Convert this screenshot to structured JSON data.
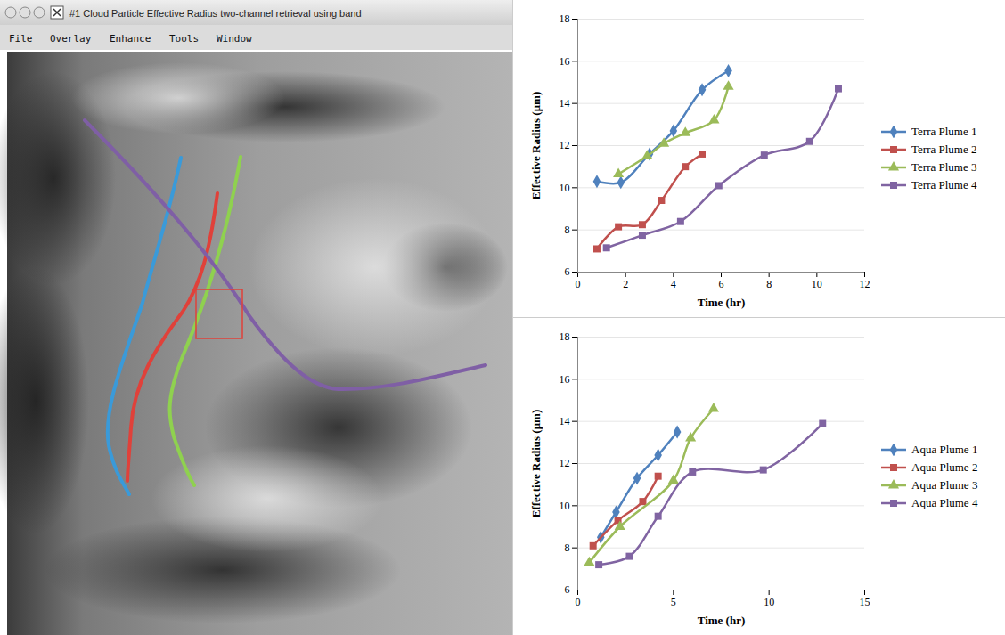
{
  "screenshot": {
    "window_title": "#1 Cloud Particle Effective Radius two-channel retrieval using band",
    "menu": [
      "File",
      "Overlay",
      "Enhance",
      "Tools",
      "Window"
    ]
  },
  "chart_data": [
    {
      "type": "line",
      "x_label": "Time (hr)",
      "y_label": "Effective Radius (μm)",
      "xlim": [
        0,
        12
      ],
      "xticks": [
        0,
        2,
        4,
        6,
        8,
        10,
        12
      ],
      "ylim": [
        6,
        18
      ],
      "yticks": [
        6,
        8,
        10,
        12,
        14,
        16,
        18
      ],
      "grid": true,
      "legend": "right",
      "line_style": "smooth",
      "series": [
        {
          "name": "Terra Plume 1",
          "color": "#4F81BD",
          "marker": "diamond",
          "x": [
            0.8,
            1.8,
            3.0,
            4.0,
            5.2,
            6.3
          ],
          "values": [
            10.3,
            10.25,
            11.6,
            12.7,
            14.65,
            15.55
          ]
        },
        {
          "name": "Terra Plume 2",
          "color": "#C0504D",
          "marker": "square",
          "x": [
            0.8,
            1.7,
            2.7,
            3.5,
            4.5,
            5.2
          ],
          "values": [
            7.1,
            8.15,
            8.25,
            9.4,
            11.0,
            11.6
          ]
        },
        {
          "name": "Terra Plume 3",
          "color": "#9BBB59",
          "marker": "triangle",
          "x": [
            1.7,
            2.9,
            3.6,
            4.5,
            5.7,
            6.3
          ],
          "values": [
            10.65,
            11.5,
            12.1,
            12.6,
            13.2,
            14.8
          ]
        },
        {
          "name": "Terra Plume 4",
          "color": "#8064A2",
          "marker": "square",
          "x": [
            1.2,
            2.7,
            4.3,
            5.9,
            7.8,
            9.7,
            10.9
          ],
          "values": [
            7.15,
            7.75,
            8.4,
            10.1,
            11.55,
            12.2,
            14.7
          ]
        }
      ]
    },
    {
      "type": "line",
      "x_label": "Time (hr)",
      "y_label": "Effective Radius (μm)",
      "xlim": [
        0,
        15
      ],
      "xticks": [
        0,
        5,
        10,
        15
      ],
      "ylim": [
        6,
        18
      ],
      "yticks": [
        6,
        8,
        10,
        12,
        14,
        16,
        18
      ],
      "grid": true,
      "legend": "right",
      "line_style": "smooth",
      "series": [
        {
          "name": "Aqua Plume 1",
          "color": "#4F81BD",
          "marker": "diamond",
          "x": [
            1.2,
            2.0,
            3.1,
            4.2,
            5.2
          ],
          "values": [
            8.5,
            9.7,
            11.3,
            12.4,
            13.5
          ]
        },
        {
          "name": "Aqua Plume 2",
          "color": "#C0504D",
          "marker": "square",
          "x": [
            0.8,
            2.1,
            3.4,
            4.2
          ],
          "values": [
            8.1,
            9.3,
            10.2,
            11.4
          ]
        },
        {
          "name": "Aqua Plume 3",
          "color": "#9BBB59",
          "marker": "triangle",
          "x": [
            0.6,
            2.2,
            5.0,
            5.9,
            7.1
          ],
          "values": [
            7.3,
            9.0,
            11.2,
            13.2,
            14.6
          ]
        },
        {
          "name": "Aqua Plume 4",
          "color": "#8064A2",
          "marker": "square",
          "x": [
            1.1,
            2.7,
            4.2,
            6.0,
            9.7,
            12.8
          ],
          "values": [
            7.2,
            7.6,
            9.5,
            11.6,
            11.7,
            13.9
          ]
        }
      ]
    }
  ]
}
